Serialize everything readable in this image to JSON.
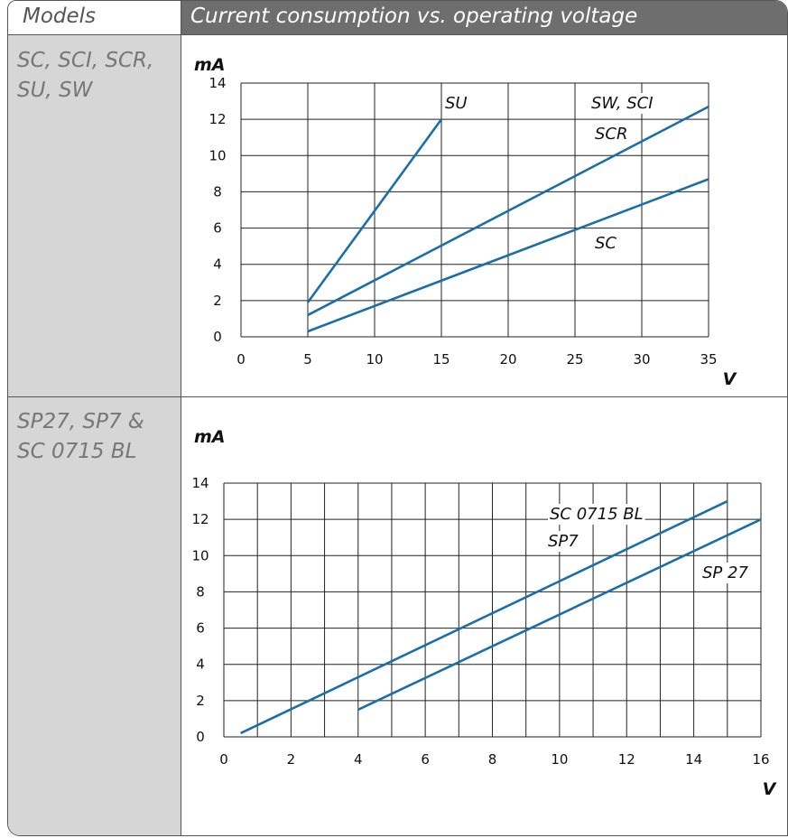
{
  "header": {
    "models_label": "Models",
    "title": "Current consumption vs. operating voltage"
  },
  "rows": [
    {
      "models_line1": "SC, SCI, SCR,",
      "models_line2": "SU, SW"
    },
    {
      "models_line1": "SP27, SP7 &",
      "models_line2": "SC 0715 BL"
    }
  ],
  "chart_data": [
    {
      "type": "line",
      "ylabel": "mA",
      "xlabel": "V",
      "xlim": [
        0,
        35
      ],
      "ylim": [
        0,
        14
      ],
      "x_ticks": [
        0,
        5,
        10,
        15,
        20,
        25,
        30,
        35
      ],
      "y_ticks": [
        0,
        2,
        4,
        6,
        8,
        10,
        12,
        14
      ],
      "grid": true,
      "series": [
        {
          "name": "SU",
          "x": [
            5,
            15
          ],
          "y": [
            1.9,
            12
          ]
        },
        {
          "name": "SW, SCI / SCR",
          "x": [
            5,
            35
          ],
          "y": [
            1.2,
            12.7
          ]
        },
        {
          "name": "SC",
          "x": [
            5,
            35
          ],
          "y": [
            0.3,
            8.7
          ]
        }
      ],
      "annotations": [
        "SU",
        "SW, SCI",
        "SCR",
        "SC"
      ]
    },
    {
      "type": "line",
      "ylabel": "mA",
      "xlabel": "V",
      "xlim": [
        0,
        16
      ],
      "ylim": [
        0,
        14
      ],
      "x_ticks": [
        0,
        2,
        4,
        6,
        8,
        10,
        12,
        14,
        16
      ],
      "y_ticks": [
        0,
        2,
        4,
        6,
        8,
        10,
        12,
        14
      ],
      "grid": true,
      "series": [
        {
          "name": "SC 0715 BL / SP7",
          "x": [
            0.5,
            15
          ],
          "y": [
            0.2,
            13
          ]
        },
        {
          "name": "SP 27",
          "x": [
            4,
            16
          ],
          "y": [
            1.5,
            12
          ]
        }
      ],
      "annotations": [
        "SC 0715 BL",
        "SP7",
        "SP 27"
      ]
    }
  ],
  "colors": {
    "line": "#1a6fa8",
    "grid": "#222222",
    "header_bg": "#6e6e6e",
    "model_bg": "#d6d6d6"
  }
}
